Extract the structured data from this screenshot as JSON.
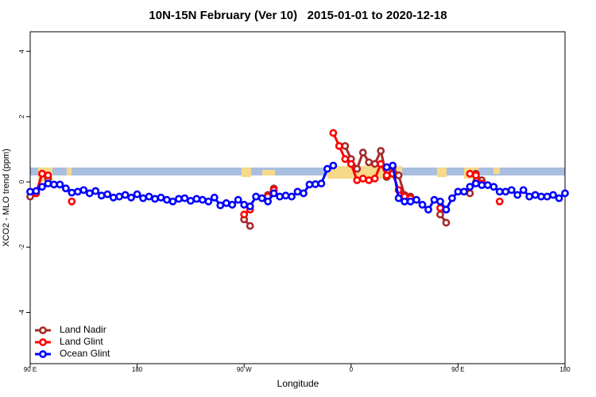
{
  "chart_data": {
    "type": "line",
    "title": "10N-15N February (Ver 10)   2015-01-01 to 2020-12-18",
    "x_label": "Longitude",
    "y_label": "XCO2 - MLO trend (ppm)",
    "xlim": [
      90,
      540
    ],
    "xticks": [
      {
        "value": 90,
        "label": "90 E"
      },
      180,
      {
        "value": 270,
        "label": "90 W"
      },
      {
        "value": 360,
        "label": "0"
      },
      {
        "value": 450,
        "label": "90 E"
      },
      {
        "value": 540,
        "label": "180"
      }
    ],
    "ylim": [
      -5.57,
      4.6
    ],
    "yticks": [
      -4,
      -2,
      0,
      2,
      4
    ],
    "grid": false,
    "legend": "bottom-left",
    "x": [
      90,
      95,
      100,
      105,
      110,
      115,
      120,
      125,
      130,
      135,
      140,
      145,
      150,
      155,
      160,
      165,
      170,
      175,
      180,
      185,
      190,
      195,
      200,
      205,
      210,
      215,
      220,
      225,
      230,
      235,
      240,
      245,
      250,
      255,
      260,
      265,
      270,
      275,
      280,
      285,
      290,
      295,
      300,
      305,
      310,
      315,
      320,
      325,
      330,
      335,
      340,
      345,
      350,
      355,
      360,
      365,
      370,
      375,
      380,
      385,
      390,
      395,
      400,
      405,
      410,
      415,
      420,
      425,
      430,
      435,
      440,
      445,
      450,
      455,
      460,
      465,
      470,
      475,
      480,
      485,
      490,
      495,
      500,
      505,
      510,
      515,
      520,
      525,
      530,
      535,
      540
    ],
    "series": [
      {
        "name": "Land Nadir",
        "color": "#a52a2a",
        "values": [
          -0.45,
          -0.35,
          0.25,
          0.1,
          null,
          null,
          -0.2,
          null,
          null,
          null,
          null,
          null,
          null,
          null,
          null,
          null,
          null,
          null,
          null,
          null,
          null,
          null,
          null,
          null,
          null,
          null,
          null,
          null,
          null,
          null,
          null,
          null,
          null,
          null,
          null,
          null,
          -1.15,
          -1.35,
          null,
          null,
          -0.4,
          -0.2,
          null,
          null,
          null,
          null,
          null,
          null,
          null,
          null,
          null,
          null,
          1.1,
          1.1,
          0.7,
          0.4,
          0.9,
          0.6,
          0.55,
          0.95,
          0.15,
          0.45,
          0.2,
          -0.4,
          -0.45,
          null,
          null,
          null,
          null,
          -1.0,
          -1.25,
          null,
          null,
          null,
          -0.35,
          0.25,
          0.05,
          null,
          null,
          null,
          null,
          null,
          null,
          null,
          null,
          null,
          null,
          null,
          null,
          null,
          null
        ]
      },
      {
        "name": "Land Glint",
        "color": "#ff0000",
        "values": [
          null,
          -0.35,
          0.25,
          0.2,
          null,
          null,
          null,
          -0.6,
          null,
          null,
          null,
          null,
          null,
          null,
          null,
          null,
          null,
          null,
          null,
          null,
          null,
          null,
          null,
          null,
          null,
          null,
          null,
          null,
          null,
          null,
          null,
          null,
          null,
          null,
          null,
          null,
          -1.0,
          -0.85,
          null,
          null,
          -0.45,
          -0.25,
          null,
          null,
          null,
          null,
          null,
          null,
          null,
          null,
          null,
          1.5,
          1.1,
          0.7,
          0.55,
          0.05,
          0.1,
          0.05,
          0.1,
          0.55,
          0.2,
          0.25,
          -0.25,
          -0.45,
          -0.5,
          null,
          null,
          null,
          null,
          -0.8,
          null,
          null,
          null,
          null,
          0.25,
          0.2,
          -0.05,
          null,
          null,
          -0.6,
          null,
          null,
          null,
          null,
          null,
          null,
          null,
          null,
          null,
          null,
          null
        ]
      },
      {
        "name": "Ocean Glint",
        "color": "#0000ff",
        "values": [
          -0.3,
          -0.28,
          -0.15,
          -0.05,
          -0.08,
          -0.08,
          -0.2,
          -0.33,
          -0.3,
          -0.25,
          -0.35,
          -0.28,
          -0.42,
          -0.38,
          -0.48,
          -0.45,
          -0.4,
          -0.48,
          -0.38,
          -0.5,
          -0.45,
          -0.52,
          -0.48,
          -0.55,
          -0.6,
          -0.52,
          -0.5,
          -0.58,
          -0.52,
          -0.55,
          -0.6,
          -0.48,
          -0.72,
          -0.65,
          -0.7,
          -0.55,
          -0.7,
          -0.75,
          -0.45,
          -0.5,
          -0.6,
          -0.35,
          -0.45,
          -0.42,
          -0.45,
          -0.3,
          -0.35,
          -0.08,
          -0.07,
          -0.05,
          0.4,
          0.5,
          null,
          null,
          null,
          null,
          null,
          null,
          null,
          null,
          0.45,
          0.5,
          -0.5,
          -0.6,
          -0.6,
          -0.55,
          -0.7,
          -0.85,
          -0.55,
          -0.6,
          -0.85,
          -0.5,
          -0.3,
          -0.3,
          -0.15,
          -0.05,
          -0.1,
          -0.1,
          -0.15,
          -0.3,
          -0.3,
          -0.25,
          -0.4,
          -0.25,
          -0.45,
          -0.4,
          -0.45,
          -0.45,
          -0.4,
          -0.5,
          -0.35
        ]
      }
    ]
  }
}
